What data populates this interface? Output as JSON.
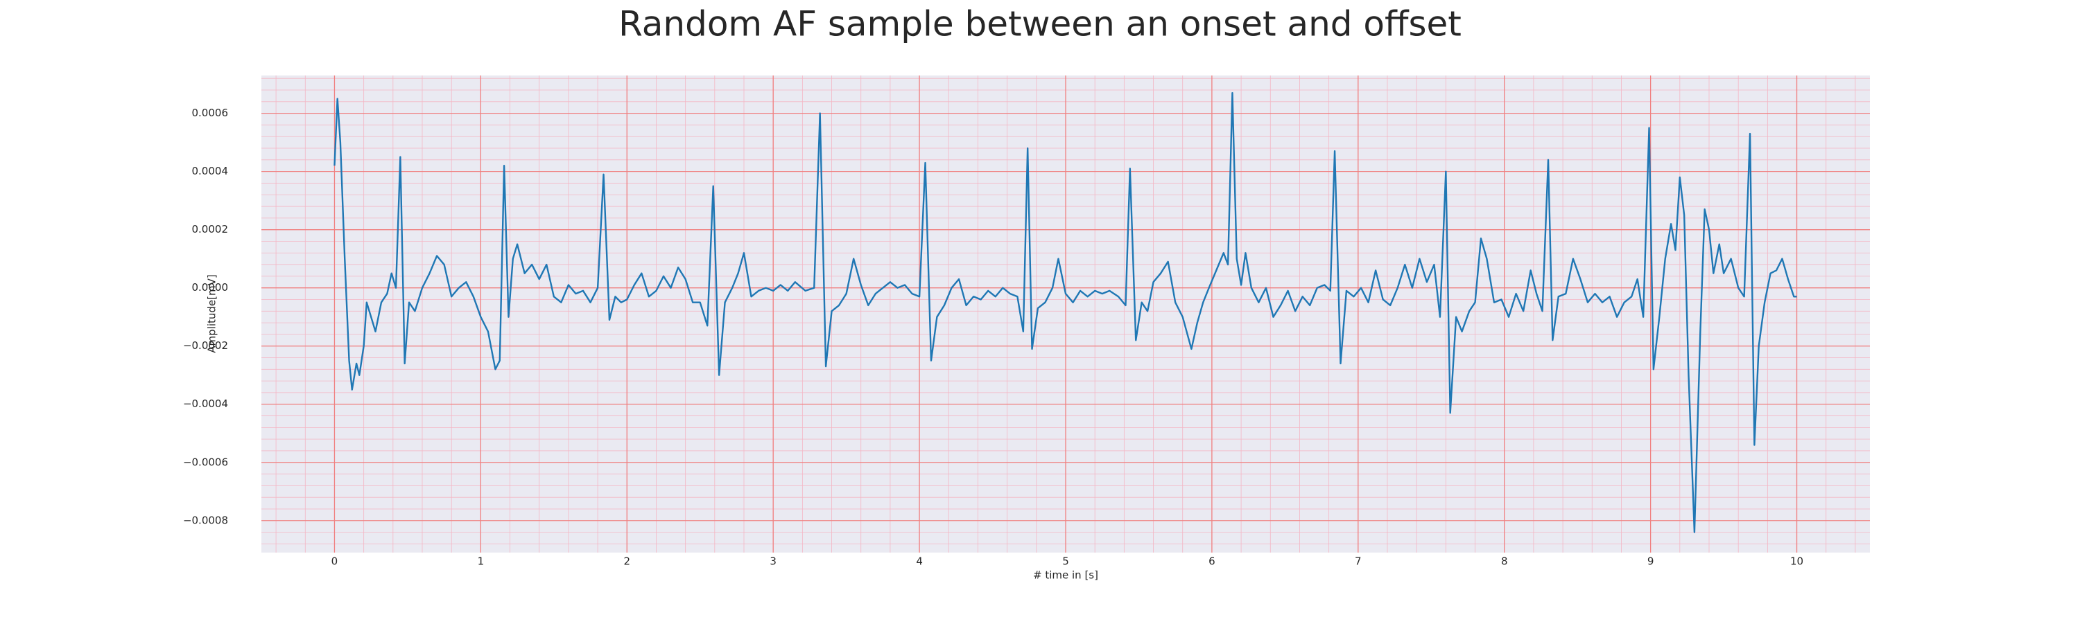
{
  "chart_data": {
    "type": "line",
    "title": "Random AF sample between an onset and offset",
    "x_label": "# time in [s]",
    "y_label": "Amplitude[mV]",
    "color": "#1f77b4",
    "grid": true,
    "minor_grid": true,
    "xlim": [
      -0.5,
      10.5
    ],
    "ylim": [
      -0.00091,
      0.00073
    ],
    "xticks": [
      0,
      1,
      2,
      3,
      4,
      5,
      6,
      7,
      8,
      9,
      10
    ],
    "yticks": [
      {
        "value": -0.0008,
        "label": "−0.0008"
      },
      {
        "value": -0.0006,
        "label": "−0.0006"
      },
      {
        "value": -0.0004,
        "label": "−0.0004"
      },
      {
        "value": -0.0002,
        "label": "−0.0002"
      },
      {
        "value": 0,
        "label": "0.0000"
      },
      0.0002,
      0.0004,
      0.0006
    ],
    "x": [
      0,
      0.02,
      0.04,
      0.07,
      0.1,
      0.12,
      0.15,
      0.17,
      0.2,
      0.22,
      0.25,
      0.28,
      0.32,
      0.36,
      0.39,
      0.42,
      0.45,
      0.48,
      0.51,
      0.55,
      0.6,
      0.65,
      0.7,
      0.75,
      0.8,
      0.85,
      0.9,
      0.95,
      1.0,
      1.05,
      1.1,
      1.13,
      1.16,
      1.19,
      1.22,
      1.25,
      1.3,
      1.35,
      1.4,
      1.45,
      1.5,
      1.55,
      1.6,
      1.65,
      1.7,
      1.75,
      1.8,
      1.84,
      1.88,
      1.92,
      1.96,
      2.0,
      2.05,
      2.1,
      2.15,
      2.2,
      2.25,
      2.3,
      2.35,
      2.4,
      2.45,
      2.5,
      2.55,
      2.59,
      2.63,
      2.67,
      2.72,
      2.76,
      2.8,
      2.85,
      2.9,
      2.95,
      3.0,
      3.05,
      3.1,
      3.15,
      3.22,
      3.28,
      3.32,
      3.36,
      3.4,
      3.45,
      3.5,
      3.55,
      3.6,
      3.65,
      3.7,
      3.75,
      3.8,
      3.85,
      3.9,
      3.95,
      4.0,
      4.04,
      4.08,
      4.12,
      4.17,
      4.22,
      4.27,
      4.32,
      4.37,
      4.42,
      4.47,
      4.52,
      4.57,
      4.62,
      4.67,
      4.71,
      4.74,
      4.77,
      4.81,
      4.86,
      4.91,
      4.95,
      5.0,
      5.05,
      5.1,
      5.15,
      5.2,
      5.25,
      5.3,
      5.36,
      5.41,
      5.44,
      5.48,
      5.52,
      5.56,
      5.6,
      5.65,
      5.7,
      5.75,
      5.8,
      5.86,
      5.9,
      5.94,
      5.98,
      6.03,
      6.08,
      6.11,
      6.14,
      6.17,
      6.2,
      6.23,
      6.27,
      6.32,
      6.37,
      6.42,
      6.47,
      6.52,
      6.57,
      6.62,
      6.67,
      6.72,
      6.77,
      6.81,
      6.84,
      6.88,
      6.92,
      6.97,
      7.02,
      7.07,
      7.12,
      7.17,
      7.22,
      7.27,
      7.32,
      7.37,
      7.42,
      7.47,
      7.52,
      7.56,
      7.6,
      7.63,
      7.67,
      7.71,
      7.76,
      7.8,
      7.84,
      7.88,
      7.93,
      7.98,
      8.03,
      8.08,
      8.13,
      8.18,
      8.22,
      8.26,
      8.3,
      8.33,
      8.37,
      8.42,
      8.47,
      8.52,
      8.57,
      8.62,
      8.67,
      8.72,
      8.77,
      8.82,
      8.87,
      8.91,
      8.95,
      8.99,
      9.02,
      9.06,
      9.1,
      9.14,
      9.17,
      9.2,
      9.23,
      9.26,
      9.3,
      9.34,
      9.37,
      9.4,
      9.43,
      9.47,
      9.5,
      9.55,
      9.6,
      9.64,
      9.68,
      9.71,
      9.74,
      9.78,
      9.82,
      9.86,
      9.9,
      9.94,
      9.98,
      10.0
    ],
    "values": [
      0.00042,
      0.00065,
      0.0005,
      0.0001,
      -0.00025,
      -0.00035,
      -0.00026,
      -0.0003,
      -0.0002,
      -5e-05,
      -0.0001,
      -0.00015,
      -5e-05,
      -2e-05,
      5e-05,
      0,
      0.00045,
      -0.00026,
      -5e-05,
      -8e-05,
      0,
      5e-05,
      0.00011,
      8e-05,
      -3e-05,
      0,
      2e-05,
      -3e-05,
      -0.0001,
      -0.00015,
      -0.00028,
      -0.00025,
      0.00042,
      -0.0001,
      0.0001,
      0.00015,
      5e-05,
      8e-05,
      3e-05,
      8e-05,
      -3e-05,
      -5e-05,
      1e-05,
      -2e-05,
      -1e-05,
      -5e-05,
      0,
      0.00039,
      -0.00011,
      -3e-05,
      -5e-05,
      -4e-05,
      1e-05,
      5e-05,
      -3e-05,
      -1e-05,
      4e-05,
      0,
      7e-05,
      3e-05,
      -5e-05,
      -5e-05,
      -0.00013,
      0.00035,
      -0.0003,
      -5e-05,
      0,
      5e-05,
      0.00012,
      -3e-05,
      -1e-05,
      0,
      -1e-05,
      1e-05,
      -1e-05,
      2e-05,
      -1e-05,
      0,
      0.0006,
      -0.00027,
      -8e-05,
      -6e-05,
      -2e-05,
      0.0001,
      1e-05,
      -6e-05,
      -2e-05,
      0,
      2e-05,
      0,
      1e-05,
      -2e-05,
      -3e-05,
      0.00043,
      -0.00025,
      -0.0001,
      -6e-05,
      0,
      3e-05,
      -6e-05,
      -3e-05,
      -4e-05,
      -1e-05,
      -3e-05,
      0,
      -2e-05,
      -3e-05,
      -0.00015,
      0.00048,
      -0.00021,
      -7e-05,
      -5e-05,
      0,
      0.0001,
      -2e-05,
      -5e-05,
      -1e-05,
      -3e-05,
      -1e-05,
      -2e-05,
      -1e-05,
      -3e-05,
      -6e-05,
      0.00041,
      -0.00018,
      -5e-05,
      -8e-05,
      2e-05,
      5e-05,
      9e-05,
      -5e-05,
      -0.0001,
      -0.00021,
      -0.00012,
      -5e-05,
      0,
      6e-05,
      0.00012,
      8e-05,
      0.00067,
      0.0001,
      1e-05,
      0.00012,
      0,
      -5e-05,
      0,
      -0.0001,
      -6e-05,
      -1e-05,
      -8e-05,
      -3e-05,
      -6e-05,
      0,
      1e-05,
      -1e-05,
      0.00047,
      -0.00026,
      -1e-05,
      -3e-05,
      0,
      -5e-05,
      6e-05,
      -4e-05,
      -6e-05,
      0,
      8e-05,
      0,
      0.0001,
      2e-05,
      8e-05,
      -0.0001,
      0.0004,
      -0.00043,
      -0.0001,
      -0.00015,
      -8e-05,
      -5e-05,
      0.00017,
      0.0001,
      -5e-05,
      -4e-05,
      -0.0001,
      -2e-05,
      -8e-05,
      6e-05,
      -2e-05,
      -8e-05,
      0.00044,
      -0.00018,
      -3e-05,
      -2e-05,
      0.0001,
      3e-05,
      -5e-05,
      -2e-05,
      -5e-05,
      -3e-05,
      -0.0001,
      -5e-05,
      -3e-05,
      3e-05,
      -0.0001,
      0.00055,
      -0.00028,
      -0.0001,
      0.0001,
      0.00022,
      0.00013,
      0.00038,
      0.00025,
      -0.0003,
      -0.00084,
      -0.00015,
      0.00027,
      0.0002,
      5e-05,
      0.00015,
      5e-05,
      0.0001,
      0,
      -3e-05,
      0.00053,
      -0.00054,
      -0.0002,
      -5e-05,
      5e-05,
      6e-05,
      0.0001,
      3e-05,
      -3e-05,
      -3e-05
    ]
  }
}
